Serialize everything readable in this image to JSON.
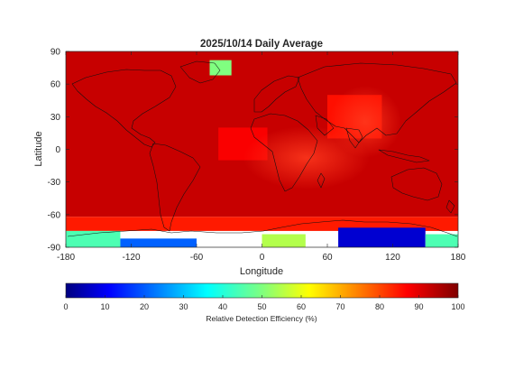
{
  "chart_data": {
    "type": "heatmap",
    "title": "2025/10/14 Daily Average",
    "xlabel": "Longitude",
    "ylabel": "Latitude",
    "xlim": [
      -180,
      180
    ],
    "ylim": [
      -90,
      90
    ],
    "xticks": [
      "-180",
      "-120",
      "-60",
      "0",
      "60",
      "120",
      "180"
    ],
    "yticks": [
      "90",
      "60",
      "30",
      "0",
      "-30",
      "-60",
      "-90"
    ],
    "colorbar": {
      "label": "Relative Detection Efficiency (%)",
      "range": [
        0,
        100
      ],
      "ticks": [
        "0",
        "10",
        "20",
        "30",
        "40",
        "50",
        "60",
        "70",
        "80",
        "90",
        "100"
      ],
      "colormap": "jet"
    },
    "regions": [
      {
        "lon": [
          -180,
          180
        ],
        "lat": [
          -62,
          90
        ],
        "value": 93
      },
      {
        "lon": [
          -40,
          5
        ],
        "lat": [
          -10,
          20
        ],
        "value": 88
      },
      {
        "lon": [
          60,
          110
        ],
        "lat": [
          10,
          50
        ],
        "value": 86
      },
      {
        "lon": [
          -48,
          -28
        ],
        "lat": [
          68,
          82
        ],
        "value": 50
      },
      {
        "lon": [
          -180,
          180
        ],
        "lat": [
          -75,
          -62
        ],
        "value": 85
      },
      {
        "lon": [
          -180,
          -130
        ],
        "lat": [
          -90,
          -75
        ],
        "value": 45
      },
      {
        "lon": [
          -130,
          -60
        ],
        "lat": [
          -90,
          -82
        ],
        "value": 22
      },
      {
        "lon": [
          0,
          40
        ],
        "lat": [
          -90,
          -78
        ],
        "value": 55
      },
      {
        "lon": [
          70,
          150
        ],
        "lat": [
          -90,
          -72
        ],
        "value": 8
      },
      {
        "lon": [
          150,
          180
        ],
        "lat": [
          -90,
          -78
        ],
        "value": 45
      }
    ]
  }
}
